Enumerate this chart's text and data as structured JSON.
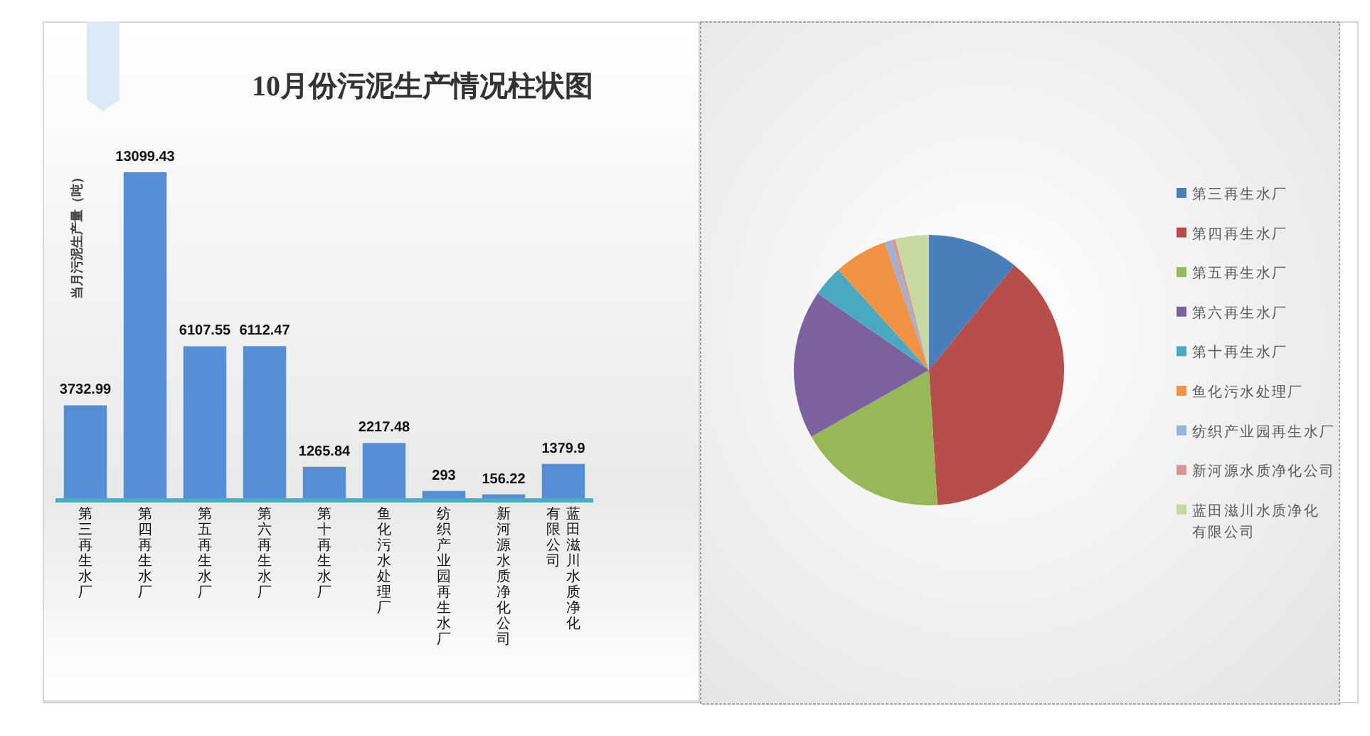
{
  "chart_data": [
    {
      "type": "bar",
      "title": "10月份污泥生产情况柱状图",
      "ylabel": "当月污泥生产量（吨）",
      "categories": [
        "第三再生水厂",
        "第四再生水厂",
        "第五再生水厂",
        "第六再生水厂",
        "第十再生水厂",
        "鱼化污水处理厂",
        "纺织产业园再生水厂",
        "新河源水质净化公司",
        "蓝田滋川水质净化有限公司"
      ],
      "values": [
        3732.99,
        13099.43,
        6107.55,
        6112.47,
        1265.84,
        2217.48,
        293,
        156.22,
        1379.9
      ],
      "color": "#558ed5",
      "data_labels": true
    },
    {
      "type": "pie",
      "categories": [
        "第三再生水厂",
        "第四再生水厂",
        "第五再生水厂",
        "第六再生水厂",
        "第十再生水厂",
        "鱼化污水处理厂",
        "纺织产业园再生水厂",
        "新河源水质净化公司",
        "蓝田滋川水质净化有限公司"
      ],
      "values": [
        10.9,
        38.1,
        17.8,
        17.8,
        3.7,
        6.4,
        0.8,
        0.5,
        4.0
      ],
      "colors": [
        "#4a7ebb",
        "#b84e4b",
        "#97b857",
        "#7d619f",
        "#4aa8c1",
        "#f29343",
        "#9bb1d6",
        "#d99694",
        "#c6d9a0"
      ],
      "legend": "right"
    }
  ]
}
